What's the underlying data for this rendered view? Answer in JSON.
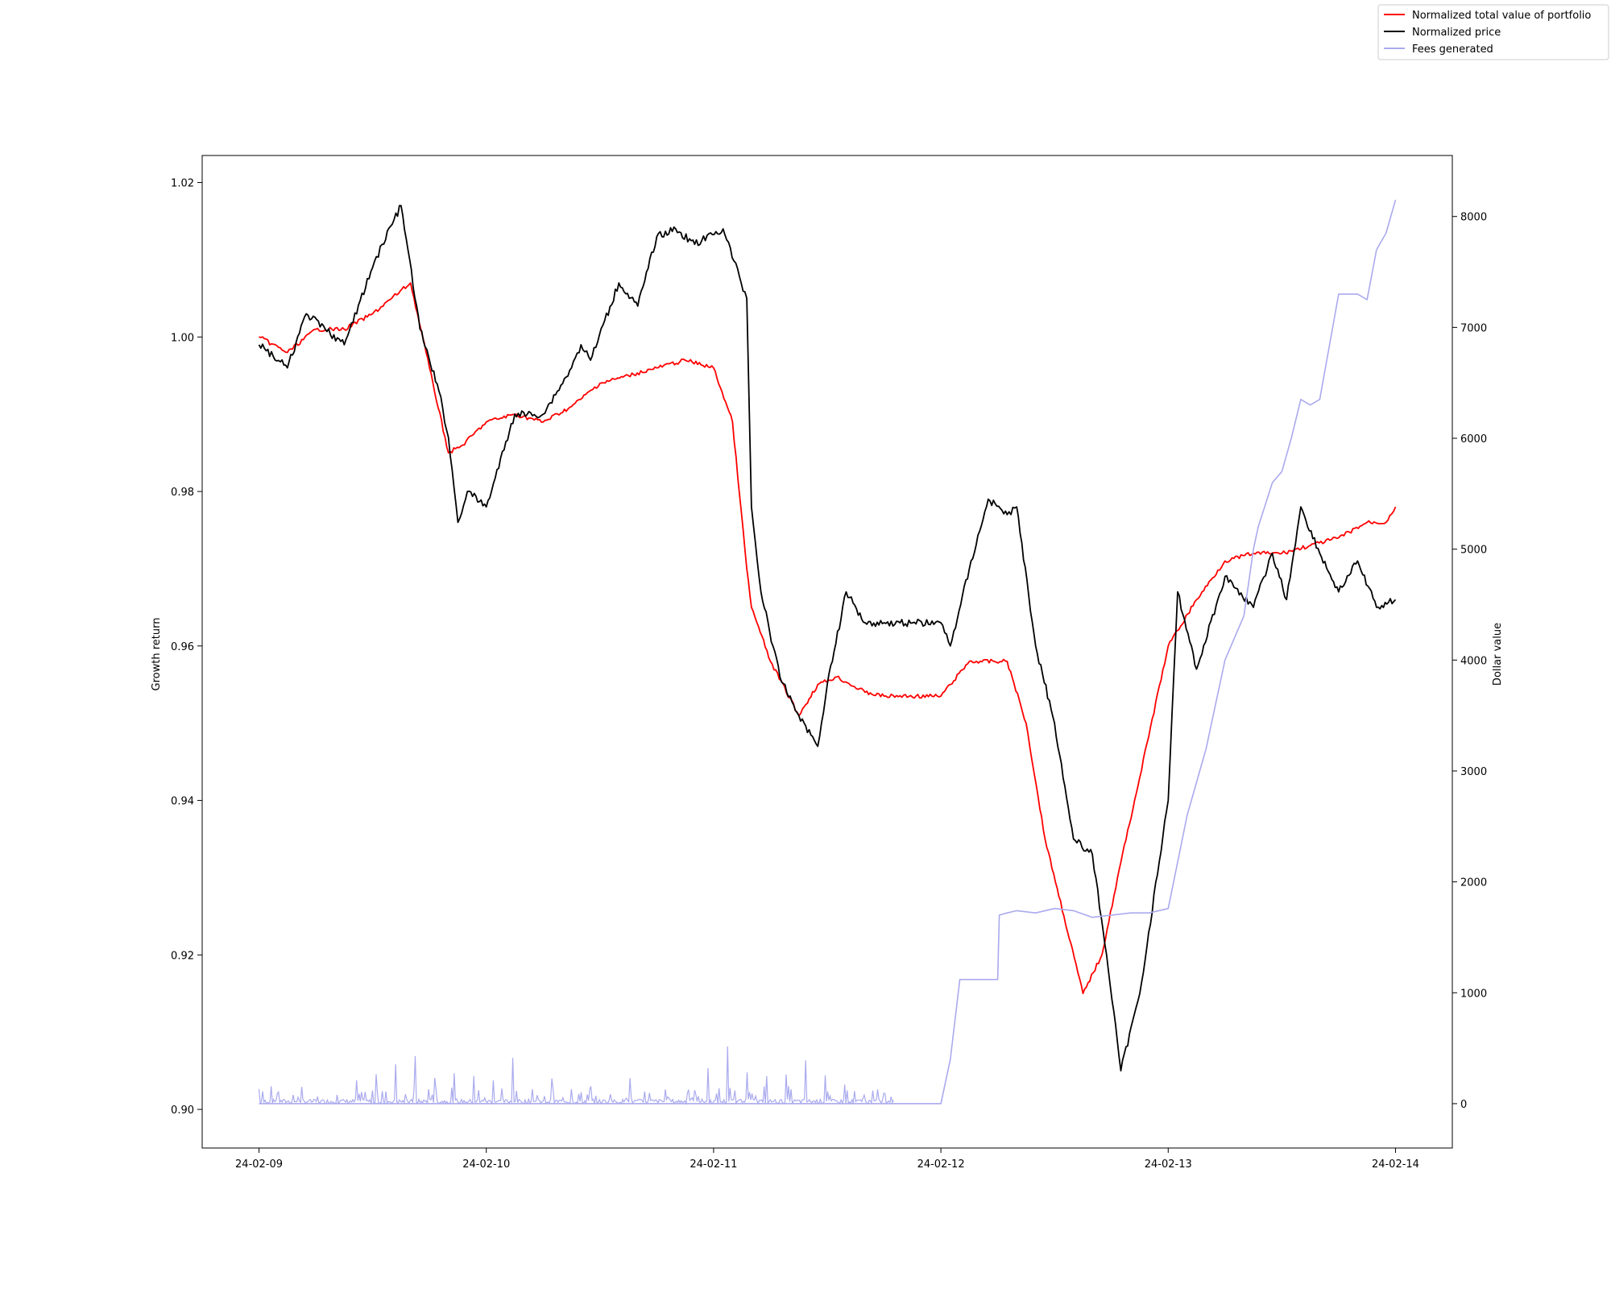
{
  "chart_data": {
    "type": "line",
    "title": "",
    "xlabel": "",
    "ylabel_left": "Growth return",
    "ylabel_right": "Dollar value",
    "x_ticks": [
      "24-02-09",
      "24-02-10",
      "24-02-11",
      "24-02-12",
      "24-02-13",
      "24-02-14"
    ],
    "xlim": [
      "24-02-08 18:00",
      "24-02-14 06:00"
    ],
    "y_left_ticks": [
      "0.90",
      "0.92",
      "0.94",
      "0.96",
      "0.98",
      "1.00",
      "1.02"
    ],
    "y_left_lim": [
      0.895,
      1.0235
    ],
    "y_right_ticks": [
      "0",
      "1000",
      "2000",
      "3000",
      "4000",
      "5000",
      "6000",
      "7000",
      "8000"
    ],
    "y_right_lim": [
      -400,
      8550
    ],
    "grid": false,
    "legend_position": "top-right",
    "series": [
      {
        "name": "Normalized total value of portfolio",
        "axis": "left",
        "color": "#ff0000",
        "x": [
          "24-02-09 00:00",
          "24-02-09 03:00",
          "24-02-09 06:00",
          "24-02-09 09:00",
          "24-02-09 12:00",
          "24-02-09 14:00",
          "24-02-09 16:00",
          "24-02-09 18:00",
          "24-02-09 20:00",
          "24-02-09 21:30",
          "24-02-10 00:00",
          "24-02-10 03:00",
          "24-02-10 06:00",
          "24-02-10 09:00",
          "24-02-10 12:00",
          "24-02-10 15:00",
          "24-02-10 18:00",
          "24-02-10 21:00",
          "24-02-11 00:00",
          "24-02-11 02:00",
          "24-02-11 03:30",
          "24-02-11 04:00",
          "24-02-11 06:00",
          "24-02-11 09:00",
          "24-02-11 11:00",
          "24-02-11 13:00",
          "24-02-11 16:00",
          "24-02-11 18:00",
          "24-02-12 00:00",
          "24-02-12 01:00",
          "24-02-12 03:00",
          "24-02-12 07:00",
          "24-02-12 09:00",
          "24-02-12 11:00",
          "24-02-12 13:00",
          "24-02-12 15:00",
          "24-02-12 17:00",
          "24-02-12 19:00",
          "24-02-12 21:00",
          "24-02-13 00:00",
          "24-02-13 03:00",
          "24-02-13 06:00",
          "24-02-13 09:00",
          "24-02-13 12:00",
          "24-02-13 15:00",
          "24-02-13 18:00",
          "24-02-13 21:00",
          "24-02-13 23:00",
          "24-02-14 00:00"
        ],
        "values": [
          1.0,
          0.998,
          1.001,
          1.001,
          1.003,
          1.005,
          1.007,
          0.996,
          0.985,
          0.986,
          0.989,
          0.99,
          0.989,
          0.991,
          0.994,
          0.995,
          0.996,
          0.997,
          0.996,
          0.989,
          0.97,
          0.965,
          0.958,
          0.951,
          0.955,
          0.956,
          0.954,
          0.9535,
          0.9535,
          0.955,
          0.958,
          0.958,
          0.95,
          0.935,
          0.925,
          0.915,
          0.92,
          0.932,
          0.943,
          0.96,
          0.966,
          0.971,
          0.972,
          0.972,
          0.973,
          0.974,
          0.976,
          0.976,
          0.978
        ]
      },
      {
        "name": "Normalized price",
        "axis": "left",
        "color": "#000000",
        "x": [
          "24-02-09 00:00",
          "24-02-09 03:00",
          "24-02-09 05:00",
          "24-02-09 07:00",
          "24-02-09 09:00",
          "24-02-09 12:00",
          "24-02-09 13:00",
          "24-02-09 15:00",
          "24-02-09 17:00",
          "24-02-09 19:00",
          "24-02-09 20:00",
          "24-02-09 21:00",
          "24-02-09 22:00",
          "24-02-10 00:00",
          "24-02-10 03:00",
          "24-02-10 06:00",
          "24-02-10 09:00",
          "24-02-10 10:00",
          "24-02-10 11:00",
          "24-02-10 14:00",
          "24-02-10 16:00",
          "24-02-10 18:00",
          "24-02-10 20:00",
          "24-02-10 22:00",
          "24-02-11 01:00",
          "24-02-11 03:30",
          "24-02-11 04:00",
          "24-02-11 05:00",
          "24-02-11 07:00",
          "24-02-11 09:00",
          "24-02-11 11:00",
          "24-02-11 12:00",
          "24-02-11 14:00",
          "24-02-11 16:00",
          "24-02-11 18:00",
          "24-02-12 00:00",
          "24-02-12 01:00",
          "24-02-12 03:00",
          "24-02-12 05:00",
          "24-02-12 07:00",
          "24-02-12 08:00",
          "24-02-12 10:00",
          "24-02-12 12:00",
          "24-02-12 14:00",
          "24-02-12 16:00",
          "24-02-12 17:30",
          "24-02-12 19:00",
          "24-02-12 21:00",
          "24-02-13 00:00",
          "24-02-13 01:00",
          "24-02-13 03:00",
          "24-02-13 06:00",
          "24-02-13 09:00",
          "24-02-13 11:00",
          "24-02-13 12:30",
          "24-02-13 14:00",
          "24-02-13 16:00",
          "24-02-13 18:00",
          "24-02-13 20:00",
          "24-02-13 22:00",
          "24-02-14 00:00"
        ],
        "values": [
          0.999,
          0.996,
          1.003,
          1.001,
          0.999,
          1.009,
          1.012,
          1.017,
          1.001,
          0.993,
          0.987,
          0.976,
          0.98,
          0.978,
          0.99,
          0.99,
          0.996,
          0.999,
          0.997,
          1.007,
          1.004,
          1.013,
          1.014,
          1.012,
          1.014,
          1.005,
          0.978,
          0.967,
          0.956,
          0.951,
          0.947,
          0.955,
          0.967,
          0.963,
          0.963,
          0.963,
          0.96,
          0.97,
          0.979,
          0.977,
          0.978,
          0.96,
          0.95,
          0.935,
          0.933,
          0.92,
          0.905,
          0.915,
          0.94,
          0.967,
          0.957,
          0.969,
          0.965,
          0.972,
          0.966,
          0.978,
          0.972,
          0.967,
          0.971,
          0.965,
          0.966
        ]
      },
      {
        "name": "Fees generated",
        "axis": "right",
        "color": "#aaaaee",
        "x": [
          "24-02-09 00:00",
          "24-02-11 18:00",
          "24-02-12 00:00",
          "24-02-12 01:00",
          "24-02-12 02:00",
          "24-02-12 05:00",
          "24-02-12 06:00",
          "24-02-12 06:10",
          "24-02-12 07:00",
          "24-02-12 08:00",
          "24-02-12 10:00",
          "24-02-12 12:00",
          "24-02-12 14:00",
          "24-02-12 16:00",
          "24-02-12 18:00",
          "24-02-12 20:00",
          "24-02-12 22:00",
          "24-02-13 00:00",
          "24-02-13 02:00",
          "24-02-13 04:00",
          "24-02-13 06:00",
          "24-02-13 08:00",
          "24-02-13 09:00",
          "24-02-13 09:30",
          "24-02-13 11:00",
          "24-02-13 12:00",
          "24-02-13 13:00",
          "24-02-13 14:00",
          "24-02-13 15:00",
          "24-02-13 16:00",
          "24-02-13 18:00",
          "24-02-13 20:00",
          "24-02-13 21:00",
          "24-02-13 22:00",
          "24-02-13 23:00",
          "24-02-14 00:00"
        ],
        "values": [
          0,
          0,
          0,
          400,
          1120,
          1120,
          1120,
          1700,
          1720,
          1740,
          1720,
          1760,
          1740,
          1680,
          1700,
          1720,
          1720,
          1760,
          2600,
          3200,
          4000,
          4400,
          5000,
          5200,
          5600,
          5700,
          6000,
          6350,
          6300,
          6350,
          7300,
          7300,
          7250,
          7700,
          7850,
          8150
        ]
      }
    ],
    "fee_spikes_note_values": [
      150,
      120,
      80,
      60,
      100,
      200,
      350,
      500,
      450,
      300,
      250,
      380,
      350,
      500,
      180,
      300,
      200,
      150,
      120,
      250,
      100,
      80,
      150,
      300,
      500,
      400,
      350,
      300,
      450,
      250,
      200,
      100
    ]
  }
}
